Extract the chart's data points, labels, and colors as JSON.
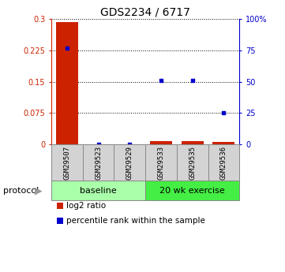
{
  "title": "GDS2234 / 6717",
  "samples": [
    "GSM29507",
    "GSM29523",
    "GSM29529",
    "GSM29533",
    "GSM29535",
    "GSM29536"
  ],
  "log2_ratio": [
    0.293,
    0.0,
    0.0,
    0.008,
    0.008,
    0.005
  ],
  "percentile_rank": [
    77.0,
    0.0,
    0.0,
    51.0,
    51.0,
    25.0
  ],
  "groups": [
    {
      "label": "baseline",
      "start": 0,
      "end": 2,
      "color": "#aaffaa"
    },
    {
      "label": "20 wk exercise",
      "start": 3,
      "end": 5,
      "color": "#44ee44"
    }
  ],
  "ylim_left": [
    0,
    0.3
  ],
  "ylim_right": [
    0,
    100
  ],
  "yticks_left": [
    0,
    0.075,
    0.15,
    0.225,
    0.3
  ],
  "yticks_right": [
    0,
    25,
    50,
    75,
    100
  ],
  "ytick_labels_left": [
    "0",
    "0.075",
    "0.15",
    "0.225",
    "0.3"
  ],
  "ytick_labels_right": [
    "0",
    "25",
    "50",
    "75",
    "100%"
  ],
  "bar_color": "#cc2200",
  "scatter_color": "#0000cc",
  "background_color": "#ffffff",
  "legend_items": [
    {
      "color": "#cc2200",
      "label": "log2 ratio"
    },
    {
      "color": "#0000cc",
      "label": "percentile rank within the sample"
    }
  ]
}
